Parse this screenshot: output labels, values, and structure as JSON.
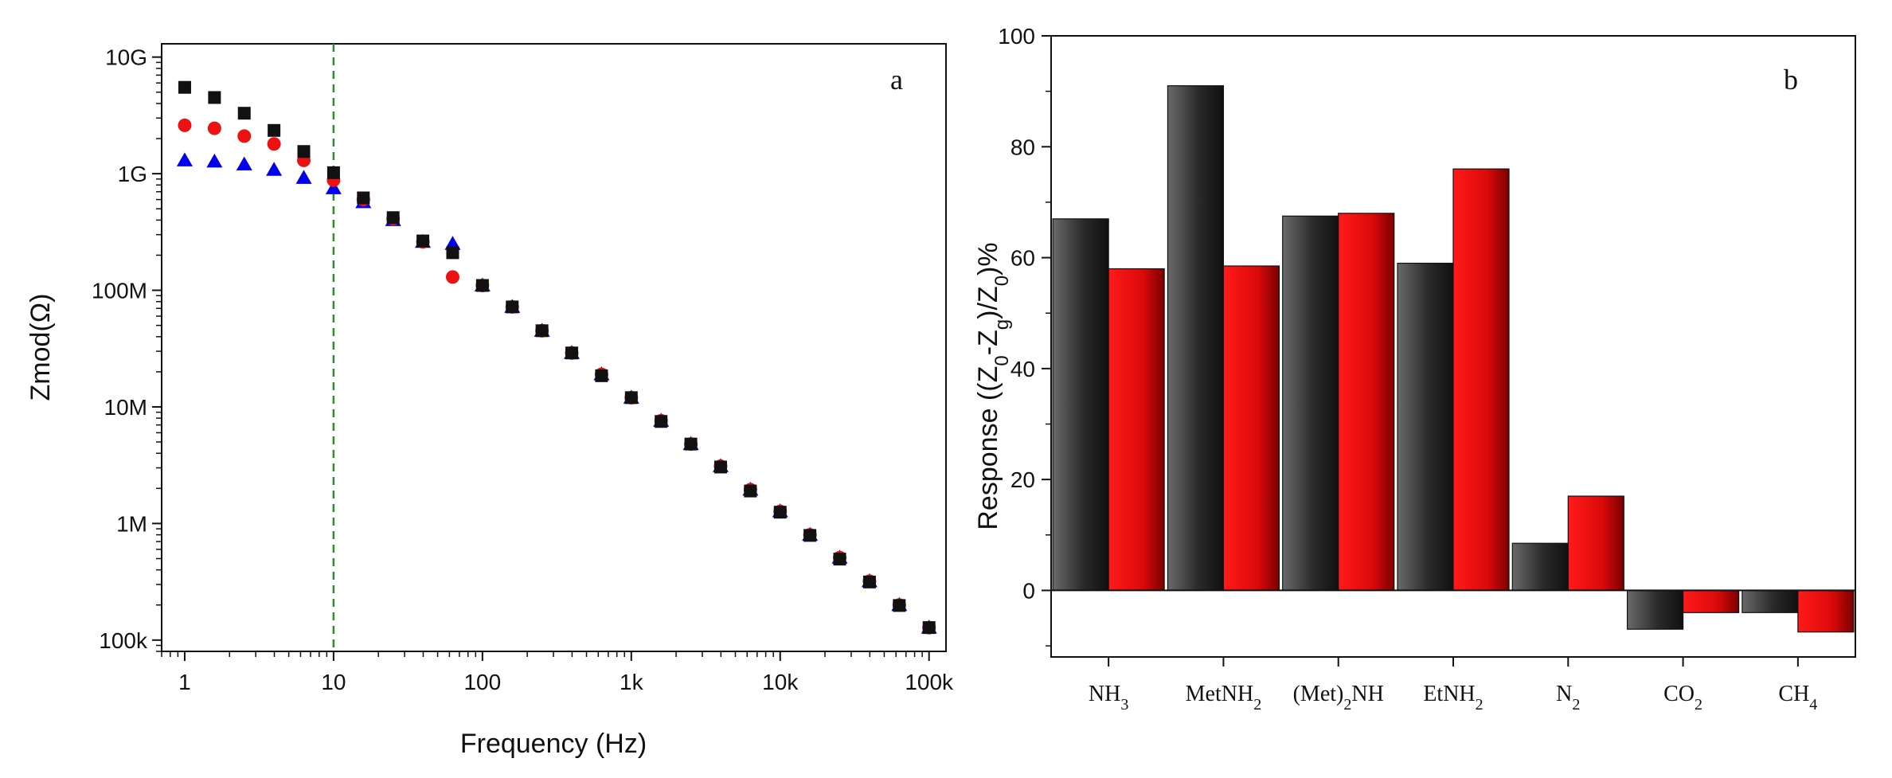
{
  "chart_data": [
    {
      "id": "a",
      "type": "scatter",
      "panel_label": "a",
      "xlabel": "Frequency (Hz)",
      "ylabel": "Zmod(Ω)",
      "xscale": "log",
      "yscale": "log",
      "xlim": [
        0.7,
        130000
      ],
      "ylim": [
        80000,
        13000000000
      ],
      "xticks": [
        {
          "value": 1,
          "label": "1"
        },
        {
          "value": 10,
          "label": "10"
        },
        {
          "value": 100,
          "label": "100"
        },
        {
          "value": 1000,
          "label": "1k"
        },
        {
          "value": 10000,
          "label": "10k"
        },
        {
          "value": 100000,
          "label": "100k"
        }
      ],
      "yticks": [
        {
          "value": 100000,
          "label": "100k"
        },
        {
          "value": 1000000,
          "label": "1M"
        },
        {
          "value": 10000000,
          "label": "10M"
        },
        {
          "value": 100000000,
          "label": "100M"
        },
        {
          "value": 1000000000,
          "label": "1G"
        },
        {
          "value": 10000000000,
          "label": "10G"
        }
      ],
      "reference_line": {
        "x": 10,
        "style": "dashed",
        "color": "#2e8b2e"
      },
      "x": [
        1,
        1.585,
        2.512,
        3.981,
        6.31,
        10,
        15.85,
        25.12,
        39.81,
        63.1,
        100,
        158.5,
        251.2,
        398.1,
        631,
        1000,
        1585,
        2512,
        3981,
        6310,
        10000,
        15850,
        25120,
        39810,
        63100,
        100000
      ],
      "series": [
        {
          "name": "triangles",
          "marker": "triangle",
          "color": "#0000ee",
          "values": [
            1300000000,
            1270000000,
            1200000000,
            1080000000,
            920000000,
            750000000,
            570000000,
            400000000,
            260000000,
            250000000,
            110000000,
            72000000,
            45000000,
            29000000,
            19000000,
            12000000,
            7600000,
            4800000,
            3100000,
            1950000,
            1270000,
            800000,
            510000,
            320000,
            200000,
            128000
          ]
        },
        {
          "name": "circles",
          "marker": "circle",
          "color": "#ee1111",
          "values": [
            2600000000,
            2450000000,
            2100000000,
            1800000000,
            1300000000,
            880000000,
            600000000,
            410000000,
            260000000,
            130000000,
            110000000,
            72000000,
            45000000,
            29000000,
            19000000,
            12000000,
            7600000,
            4800000,
            3100000,
            1950000,
            1270000,
            800000,
            510000,
            320000,
            200000,
            128000
          ]
        },
        {
          "name": "squares",
          "marker": "square",
          "color": "#111111",
          "values": [
            5500000000,
            4500000000,
            3300000000,
            2350000000,
            1550000000,
            1020000000,
            620000000,
            420000000,
            265000000,
            210000000,
            110000000,
            72000000,
            45000000,
            29000000,
            18500000,
            12000000,
            7500000,
            4800000,
            3050000,
            1900000,
            1250000,
            790000,
            495000,
            315000,
            198000,
            128000
          ]
        }
      ]
    },
    {
      "id": "b",
      "type": "bar",
      "panel_label": "b",
      "ylabel": "Response ((Z0-Zg)/Z0)%",
      "ylim": [
        -12,
        100
      ],
      "yticks": [
        0,
        20,
        40,
        60,
        80,
        100
      ],
      "categories": [
        {
          "base": "NH",
          "sub": "3",
          "tail": ""
        },
        {
          "base": "MetNH",
          "sub": "2",
          "tail": ""
        },
        {
          "base": "(Met)",
          "sub": "2",
          "tail": "NH"
        },
        {
          "base": "EtNH",
          "sub": "2",
          "tail": ""
        },
        {
          "base": "N",
          "sub": "2",
          "tail": ""
        },
        {
          "base": "CO",
          "sub": "2",
          "tail": ""
        },
        {
          "base": "CH",
          "sub": "4",
          "tail": ""
        }
      ],
      "series": [
        {
          "name": "black",
          "color": "#1a1a1a",
          "values": [
            67,
            91,
            67.5,
            59,
            8.5,
            -7,
            -4
          ]
        },
        {
          "name": "red",
          "color": "#e01010",
          "values": [
            58,
            58.5,
            68,
            76,
            17,
            -4,
            -7.5
          ]
        }
      ]
    }
  ]
}
